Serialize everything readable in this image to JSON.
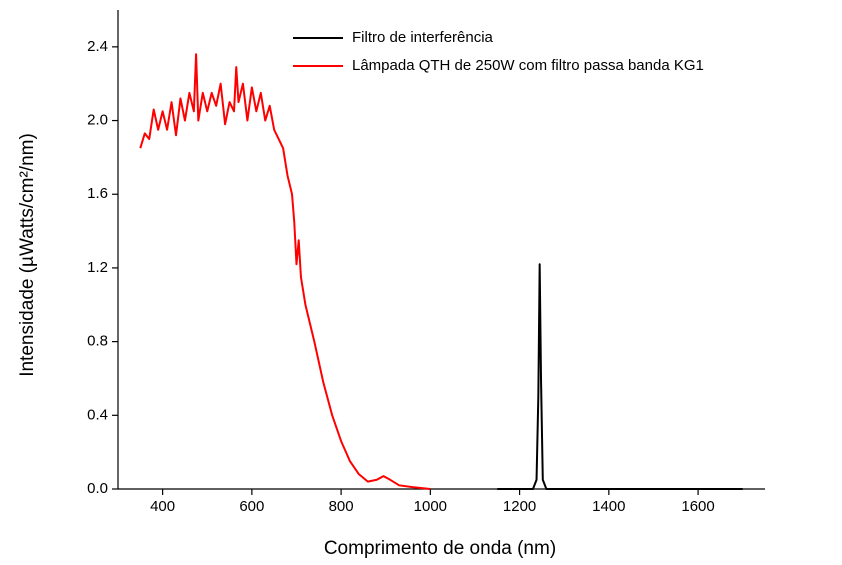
{
  "chart_data": {
    "type": "line",
    "xlabel": "Comprimento de onda (nm)",
    "ylabel": "Intensidade (µWatts/cm²/nm)",
    "xlim": [
      300,
      1750
    ],
    "xticks": [
      400,
      600,
      800,
      1000,
      1200,
      1400,
      1600
    ],
    "ylim": [
      0,
      2.6
    ],
    "yticks": [
      {
        "value": 0,
        "label": "0.0"
      },
      0.4,
      0.8,
      1.2,
      1.6,
      {
        "value": 2,
        "label": "2.0"
      },
      2.4
    ],
    "legend": "top",
    "series": [
      {
        "name": "Filtro de interferência",
        "color": "#000000",
        "x": [
          1150,
          1230,
          1238,
          1242,
          1245,
          1248,
          1252,
          1260,
          1700
        ],
        "values": [
          0,
          0,
          0.05,
          0.5,
          1.22,
          0.6,
          0.05,
          0,
          0
        ]
      },
      {
        "name": "Lâmpada QTH de 250W com filtro passa banda KG1",
        "color": "#ff0000",
        "x": [
          350,
          360,
          370,
          380,
          390,
          400,
          410,
          420,
          430,
          440,
          450,
          460,
          470,
          475,
          480,
          490,
          500,
          510,
          520,
          530,
          540,
          550,
          560,
          565,
          570,
          580,
          590,
          600,
          610,
          620,
          630,
          640,
          650,
          660,
          670,
          680,
          690,
          695,
          700,
          705,
          710,
          720,
          740,
          760,
          780,
          800,
          820,
          840,
          860,
          880,
          895,
          910,
          930,
          960,
          1000
        ],
        "values": [
          1.85,
          1.93,
          1.9,
          2.06,
          1.95,
          2.05,
          1.95,
          2.1,
          1.92,
          2.12,
          2.0,
          2.15,
          2.05,
          2.36,
          2.0,
          2.15,
          2.05,
          2.15,
          2.08,
          2.2,
          1.98,
          2.1,
          2.05,
          2.29,
          2.1,
          2.2,
          2.0,
          2.18,
          2.05,
          2.15,
          2.0,
          2.08,
          1.95,
          1.9,
          1.85,
          1.7,
          1.6,
          1.45,
          1.22,
          1.35,
          1.15,
          1.0,
          0.8,
          0.58,
          0.4,
          0.26,
          0.15,
          0.08,
          0.04,
          0.05,
          0.07,
          0.05,
          0.02,
          0.01,
          0
        ]
      }
    ]
  }
}
